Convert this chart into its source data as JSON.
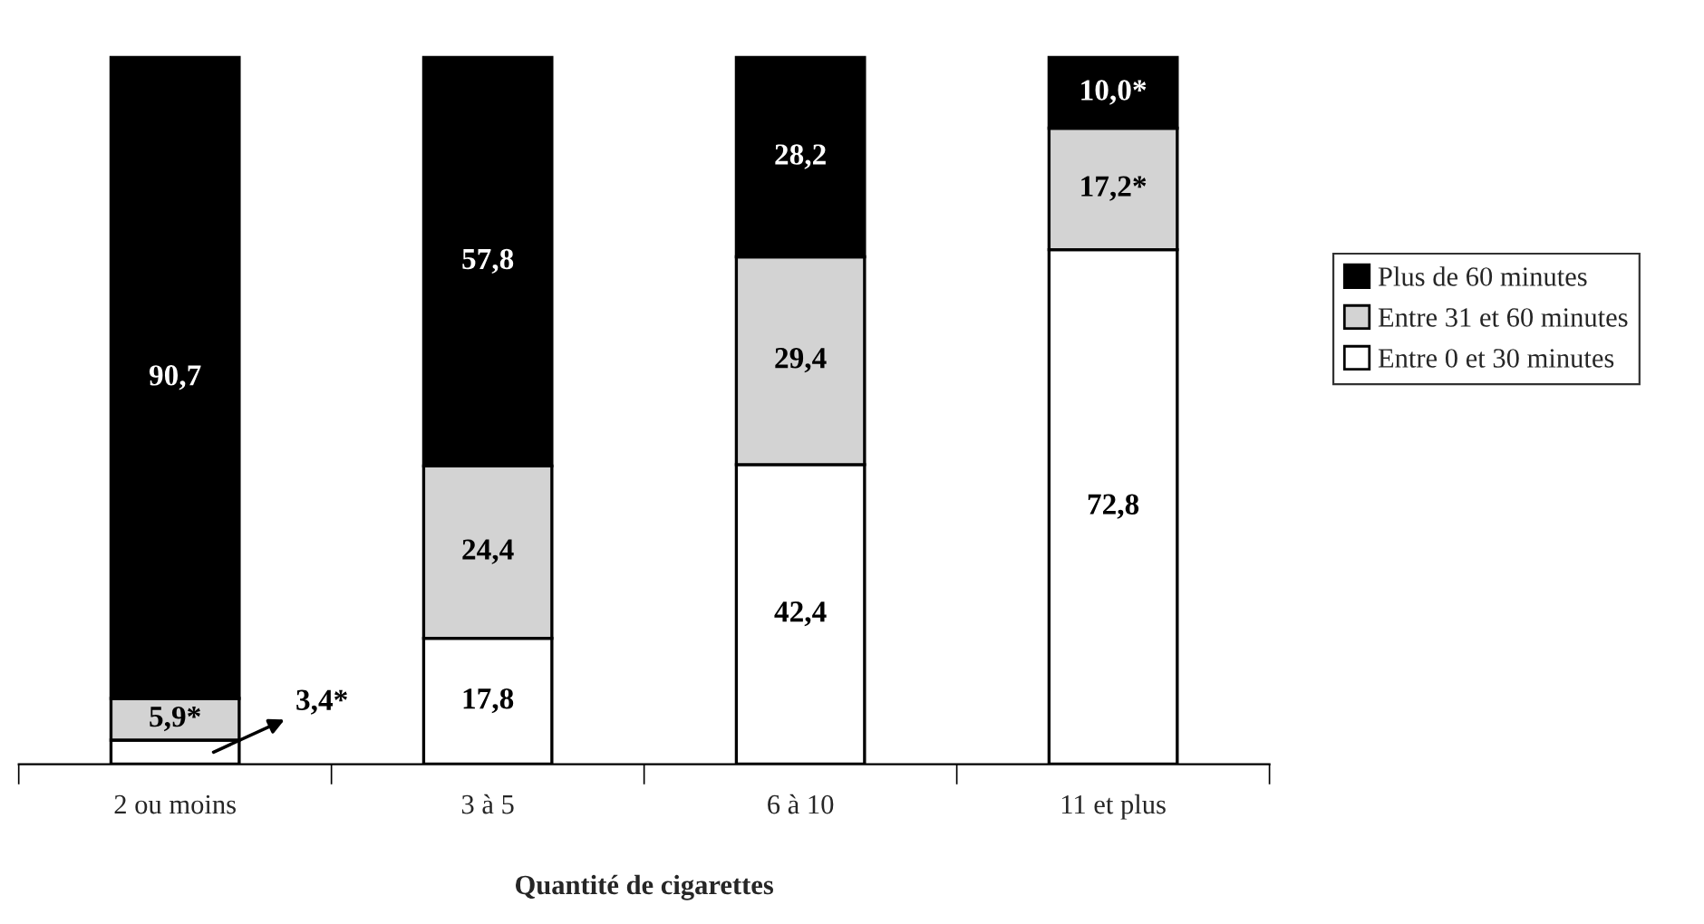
{
  "chart_data": {
    "type": "bar",
    "stacked": true,
    "xlabel": "Quantité de cigarettes",
    "categories": [
      "2 ou moins",
      "3 à 5",
      "6 à 10",
      "11 et plus"
    ],
    "series": [
      {
        "name": "Entre 0 et 30 minutes",
        "color": "#ffffff",
        "values": [
          3.4,
          17.8,
          42.4,
          72.8
        ],
        "value_labels": [
          "3,4*",
          "17,8",
          "42,4",
          "72,8"
        ]
      },
      {
        "name": "Entre 31 et 60 minutes",
        "color": "#d3d3d3",
        "values": [
          5.9,
          24.4,
          29.4,
          17.2
        ],
        "value_labels": [
          "5,9*",
          "24,4",
          "29,4",
          "17,2*"
        ]
      },
      {
        "name": "Plus de 60 minutes",
        "color": "#000000",
        "values": [
          90.7,
          57.8,
          28.2,
          10.0
        ],
        "value_labels": [
          "90,7",
          "57,8",
          "28,2",
          "10,0*"
        ]
      }
    ],
    "legend": "right",
    "grid": false
  }
}
